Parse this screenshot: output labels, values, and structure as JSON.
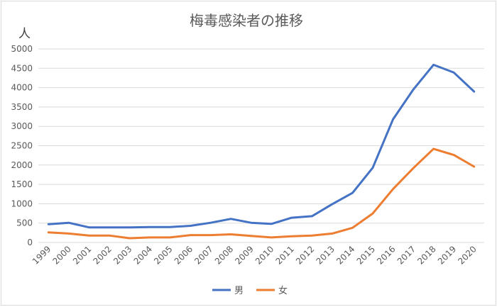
{
  "chart_data": {
    "type": "line",
    "title": "梅毒感染者の推移",
    "ylabel": "人",
    "xlabel": "",
    "ylim": [
      0,
      5000
    ],
    "yticks": [
      0,
      500,
      1000,
      1500,
      2000,
      2500,
      3000,
      3500,
      4000,
      4500,
      5000
    ],
    "grid": true,
    "legend_position": "bottom",
    "categories": [
      "1999",
      "2000",
      "2001",
      "2002",
      "2003",
      "2004",
      "2005",
      "2006",
      "2007",
      "2008",
      "2009",
      "2010",
      "2011",
      "2012",
      "2013",
      "2014",
      "2015",
      "2016",
      "2017",
      "2018",
      "2019",
      "2020"
    ],
    "series": [
      {
        "name": "男",
        "color": "#4472C4",
        "values": [
          470,
          510,
          390,
          390,
          390,
          400,
          400,
          430,
          510,
          610,
          510,
          480,
          640,
          680,
          990,
          1280,
          1930,
          3180,
          3950,
          4590,
          4390,
          3900
        ]
      },
      {
        "name": "女",
        "color": "#ED7D31",
        "values": [
          260,
          230,
          180,
          180,
          110,
          130,
          130,
          190,
          190,
          210,
          170,
          130,
          160,
          180,
          230,
          380,
          750,
          1380,
          1920,
          2420,
          2260,
          1960
        ]
      }
    ]
  }
}
